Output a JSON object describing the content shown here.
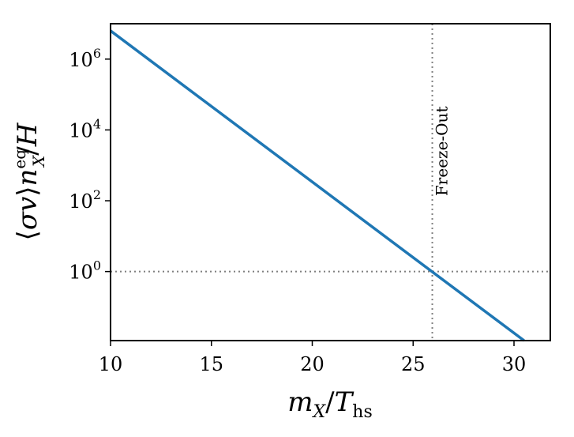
{
  "chart_data": {
    "type": "line",
    "xlabel": "mX/Ths",
    "ylabel": "⟨σv⟩nXeq/H",
    "xlim": [
      10,
      31.8
    ],
    "ylim_log10": [
      -1.95,
      7.0
    ],
    "y_scale": "log",
    "grid": false,
    "x_ticks": [
      10,
      15,
      20,
      25,
      30
    ],
    "y_ticks": [
      {
        "exp": 0,
        "label_base": "10",
        "label_exp": "0"
      },
      {
        "exp": 2,
        "label_base": "10",
        "label_exp": "2"
      },
      {
        "exp": 4,
        "label_base": "10",
        "label_exp": "4"
      },
      {
        "exp": 6,
        "label_base": "10",
        "label_exp": "6"
      }
    ],
    "series": [
      {
        "color": "#1f77b4",
        "points": [
          {
            "x": 10,
            "log10y": 6.8
          },
          {
            "x": 30.5,
            "log10y": -1.95
          }
        ]
      }
    ],
    "reference_lines": {
      "horizontal_log10y": 0,
      "vertical_x": 25.95,
      "color": "#808080"
    },
    "annotation": {
      "text": "Freeze-Out",
      "x": 26.7,
      "log10y": 3.4
    }
  }
}
